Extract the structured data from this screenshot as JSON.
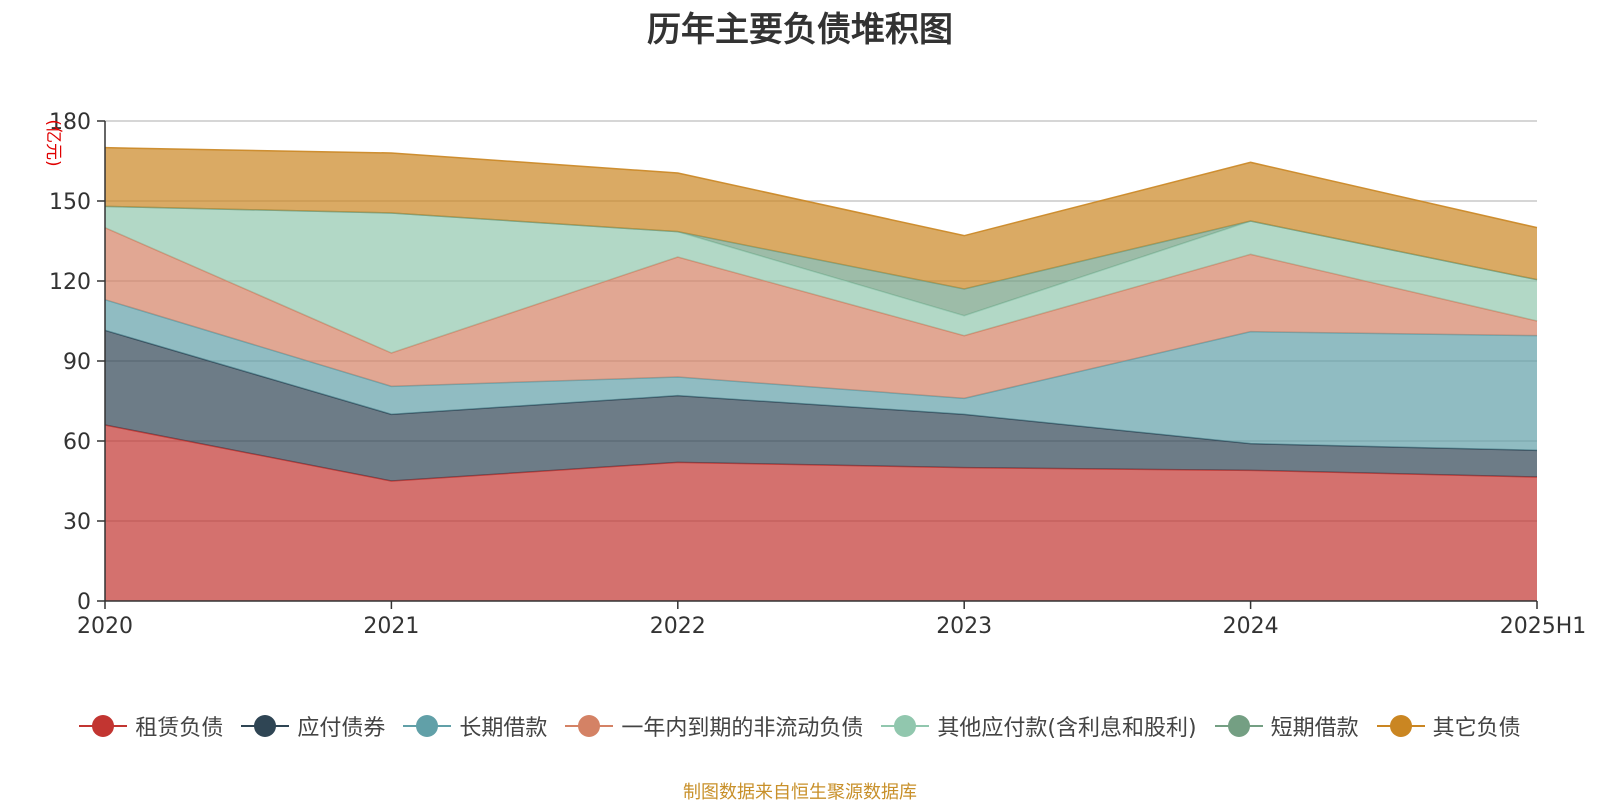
{
  "chart_data": {
    "type": "area",
    "stacked": true,
    "title": "历年主要负债堆积图",
    "ylabel": "(亿元)",
    "xlabel": "",
    "categories": [
      "2020",
      "2021",
      "2022",
      "2023",
      "2024",
      "2025H1"
    ],
    "ylim": [
      0,
      180
    ],
    "yticks": [
      0,
      30,
      60,
      90,
      120,
      150,
      180
    ],
    "grid": true,
    "legend_position": "bottom",
    "series": [
      {
        "name": "租赁负债",
        "color": "#c23531",
        "values": [
          66,
          45,
          52,
          50,
          49,
          46.5
        ]
      },
      {
        "name": "应付债券",
        "color": "#2f4554",
        "values": [
          35.5,
          25,
          25,
          20,
          10,
          10
        ]
      },
      {
        "name": "长期借款",
        "color": "#61a0a8",
        "values": [
          11.5,
          10.5,
          7,
          6,
          42,
          43
        ]
      },
      {
        "name": "一年内到期的非流动负债",
        "color": "#d48265",
        "values": [
          27,
          12.5,
          45,
          23.5,
          29,
          5.5
        ]
      },
      {
        "name": "其他应付款(含利息和股利)",
        "color": "#91c7ae",
        "values": [
          8,
          52.5,
          9.5,
          7.5,
          12.5,
          15.5
        ]
      },
      {
        "name": "短期借款",
        "color": "#749f83",
        "values": [
          0,
          0,
          0,
          10,
          0,
          0
        ]
      },
      {
        "name": "其它负债",
        "color": "#ca8622",
        "values": [
          22,
          22.5,
          22,
          20,
          22,
          19.5
        ]
      }
    ]
  },
  "footer": {
    "source": "制图数据来自恒生聚源数据库"
  }
}
